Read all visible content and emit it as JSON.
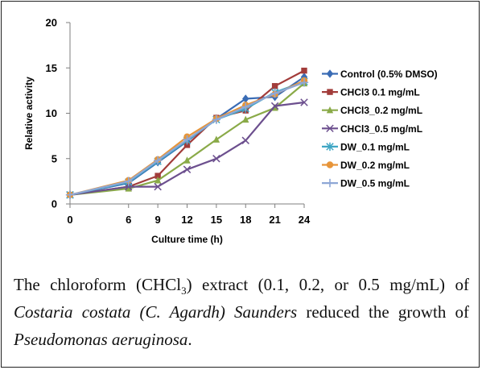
{
  "chart_data": {
    "type": "line",
    "title": "",
    "xlabel": "Culture time (h)",
    "ylabel": "Relative activity",
    "x": [
      0,
      6,
      9,
      12,
      15,
      18,
      21,
      24
    ],
    "x_ticks": [
      "0",
      "6",
      "9",
      "12",
      "15",
      "18",
      "21",
      "24"
    ],
    "ylim": [
      0,
      20
    ],
    "y_ticks": [
      "0",
      "5",
      "10",
      "15",
      "20"
    ],
    "grid": false,
    "legend_position": "right",
    "series": [
      {
        "name": "Control (0.5% DMSO)",
        "color": "#3a6cb5",
        "marker": "diamond",
        "values": [
          1.0,
          2.3,
          4.6,
          6.9,
          9.4,
          11.6,
          11.8,
          14.0
        ]
      },
      {
        "name": "CHCl3  0.1 mg/mL",
        "color": "#a23c3a",
        "marker": "square",
        "values": [
          1.0,
          1.9,
          3.1,
          6.5,
          9.5,
          10.3,
          13.0,
          14.7
        ]
      },
      {
        "name": "CHCl3_0.2 mg/mL",
        "color": "#8aaa48",
        "marker": "triangle",
        "values": [
          1.0,
          1.7,
          2.6,
          4.8,
          7.1,
          9.3,
          10.6,
          13.3
        ]
      },
      {
        "name": "CHCl3_0.5 mg/mL",
        "color": "#6c4f8e",
        "marker": "x",
        "values": [
          1.0,
          1.9,
          1.9,
          3.8,
          5.0,
          7.0,
          10.8,
          11.2
        ]
      },
      {
        "name": "DW_0.1 mg/mL",
        "color": "#3ea6c4",
        "marker": "star",
        "values": [
          1.0,
          2.4,
          4.7,
          7.0,
          9.3,
          10.5,
          12.3,
          13.5
        ]
      },
      {
        "name": "DW_0.2 mg/mL",
        "color": "#e7953a",
        "marker": "circle",
        "values": [
          1.0,
          2.6,
          4.9,
          7.4,
          9.4,
          10.9,
          12.1,
          13.6
        ]
      },
      {
        "name": "DW_0.5 mg/mL",
        "color": "#8ea7d6",
        "marker": "plus",
        "values": [
          1.0,
          2.5,
          4.8,
          7.1,
          9.3,
          10.7,
          12.2,
          13.4
        ]
      }
    ]
  },
  "caption": {
    "p1": "The chloroform (CHCl",
    "sub": "3",
    "p2": ") extract (0.1, 0.2, or 0.5 mg/mL) of ",
    "italic1": "Costaria costata (C. Agardh) Saunders",
    "p3": " reduced the growth of ",
    "italic2": "Pseudomonas aeruginosa",
    "p4": "."
  }
}
